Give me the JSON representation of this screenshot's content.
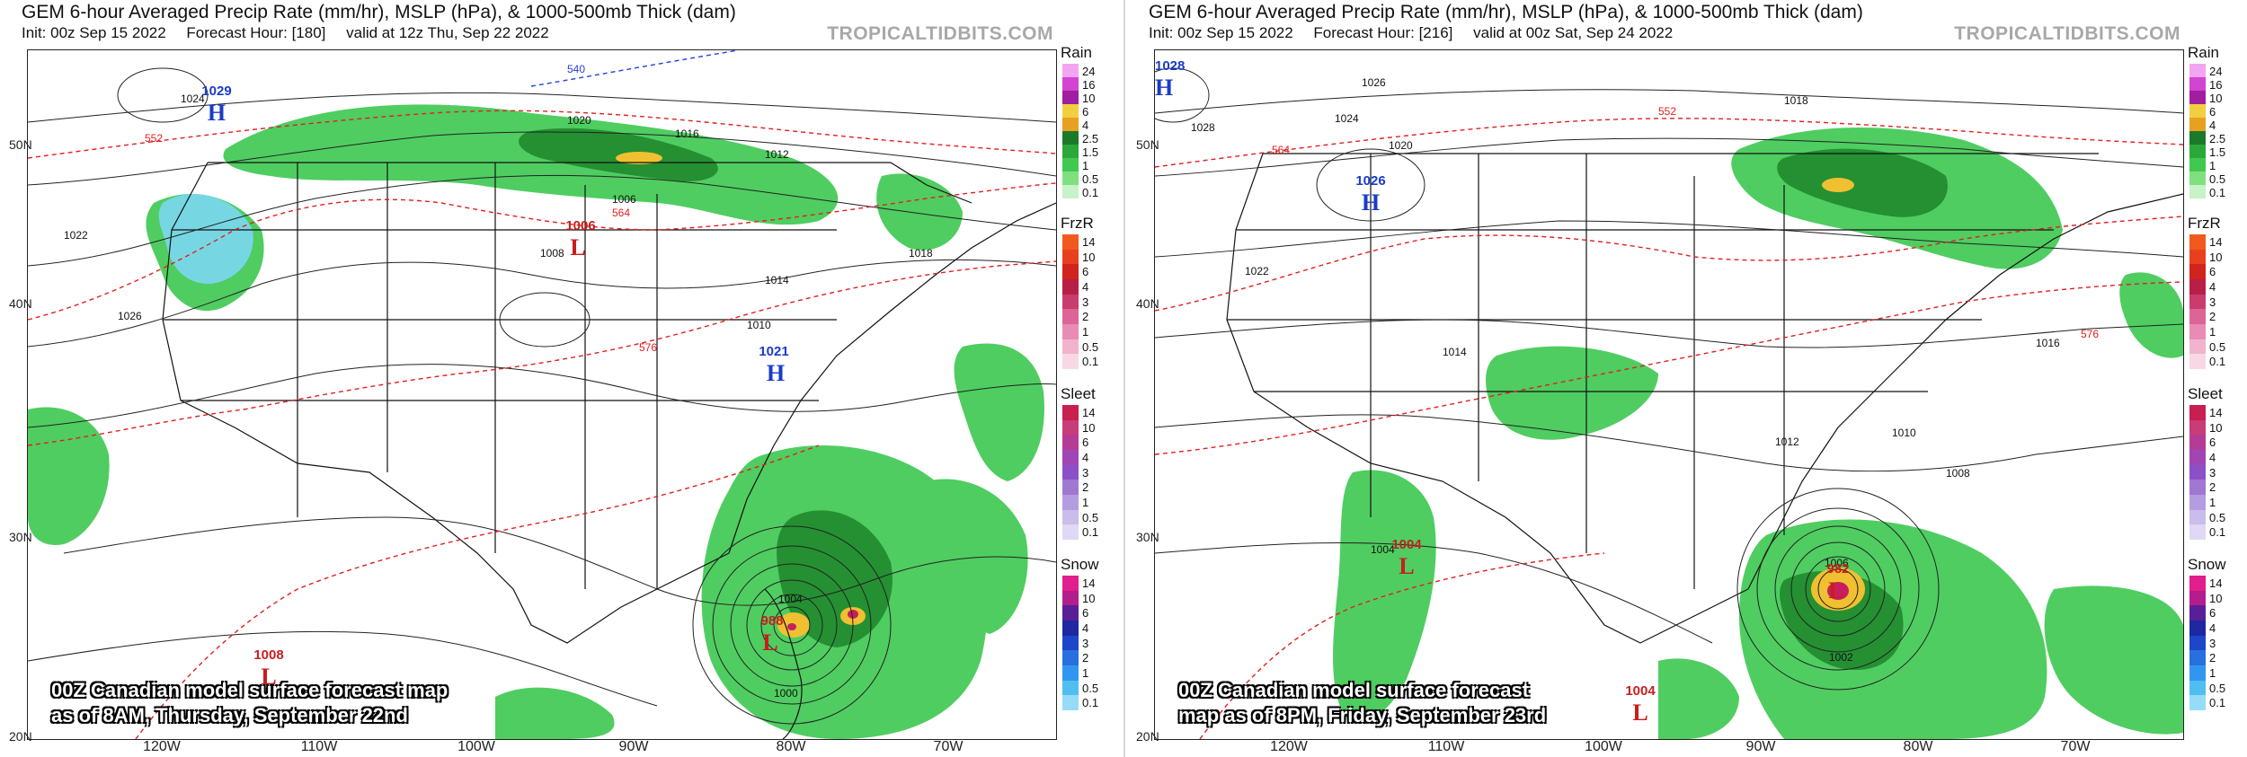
{
  "panels": [
    {
      "title": "GEM 6-hour Averaged Precip Rate (mm/hr), MSLP (hPa), & 1000-500mb Thick (dam)",
      "init": "Init: 00z Sep 15 2022",
      "forecast_hour": "Forecast Hour: [180]",
      "valid": "valid at 12z Thu, Sep 22 2022",
      "brand": "TROPICALTIDBITS.COM",
      "caption_line1": "00Z Canadian model surface forecast map",
      "caption_line2": "as of 8AM, Thursday, September 22nd",
      "pressure_centers": [
        {
          "type": "H",
          "value": "1029"
        },
        {
          "type": "L",
          "value": "1006"
        },
        {
          "type": "H",
          "value": "1021"
        },
        {
          "type": "L",
          "value": "988"
        },
        {
          "type": "L",
          "value": "1008"
        }
      ],
      "isobar_labels": [
        "1024",
        "1020",
        "1016",
        "1012",
        "1008",
        "1014",
        "1018",
        "1022",
        "1010",
        "1006",
        "1004",
        "1000",
        "1026"
      ],
      "thickness_labels": [
        "552",
        "564",
        "576",
        "540"
      ]
    },
    {
      "title": "GEM 6-hour Averaged Precip Rate (mm/hr), MSLP (hPa), & 1000-500mb Thick (dam)",
      "init": "Init: 00z Sep 15 2022",
      "forecast_hour": "Forecast Hour: [216]",
      "valid": "valid at 00z Sat, Sep 24 2022",
      "brand": "TROPICALTIDBITS.COM",
      "caption_line1": "00Z Canadian model surface forecast",
      "caption_line2": "map as of 8PM, Friday, September 23rd",
      "pressure_centers": [
        {
          "type": "H",
          "value": "1028"
        },
        {
          "type": "H",
          "value": "1026"
        },
        {
          "type": "L",
          "value": "1004"
        },
        {
          "type": "L",
          "value": "1004"
        },
        {
          "type": "L",
          "value": "982"
        }
      ],
      "isobar_labels": [
        "1024",
        "1020",
        "1016",
        "1012",
        "1008",
        "1014",
        "1018",
        "1022",
        "1010",
        "1006",
        "1004",
        "1002",
        "1026",
        "1028"
      ],
      "thickness_labels": [
        "552",
        "564",
        "576"
      ]
    }
  ],
  "axes": {
    "lat_labels": [
      "50N",
      "40N",
      "30N",
      "20N"
    ],
    "lon_labels": [
      "120W",
      "110W",
      "100W",
      "90W",
      "80W",
      "70W"
    ]
  },
  "legend": {
    "rain": {
      "title": "Rain",
      "ticks": [
        "24",
        "16",
        "10",
        "6",
        "4",
        "2.5",
        "1.5",
        "1",
        "0.5",
        "0.1"
      ],
      "colors": [
        "#f2a6f2",
        "#d244d2",
        "#a01ea0",
        "#f0d040",
        "#e8a020",
        "#1a7a2a",
        "#2aa83a",
        "#40c850",
        "#80e080",
        "#c8f2c8"
      ]
    },
    "frzr": {
      "title": "FrzR",
      "ticks": [
        "14",
        "10",
        "6",
        "4",
        "3",
        "2",
        "1",
        "0.5",
        "0.1"
      ],
      "colors": [
        "#f05a1e",
        "#e8401e",
        "#d0241e",
        "#b81e46",
        "#c83c6e",
        "#dc6496",
        "#e88cb4",
        "#f0b4cc",
        "#f8d8e4"
      ]
    },
    "sleet": {
      "title": "Sleet",
      "ticks": [
        "14",
        "10",
        "6",
        "4",
        "3",
        "2",
        "1",
        "0.5",
        "0.1"
      ],
      "colors": [
        "#c81e50",
        "#c83c78",
        "#b43c96",
        "#a046b4",
        "#8c50c8",
        "#a078d2",
        "#b49ce0",
        "#cabceb",
        "#e0d8f4"
      ]
    },
    "snow": {
      "title": "Snow",
      "ticks": [
        "14",
        "10",
        "6",
        "4",
        "3",
        "2",
        "1",
        "0.5",
        "0.1"
      ],
      "colors": [
        "#e01e8c",
        "#b41e8c",
        "#5a1e96",
        "#1e28a0",
        "#1e46c8",
        "#2870e0",
        "#3296f0",
        "#50bef0",
        "#96dcf8"
      ]
    }
  },
  "colors": {
    "isobar": "#222222",
    "thickness": "#e02020",
    "thickness_cold": "#2040e0",
    "high_label": "#1a3cc8",
    "low_label": "#c81e1e",
    "precip_green": "#3cc850"
  }
}
